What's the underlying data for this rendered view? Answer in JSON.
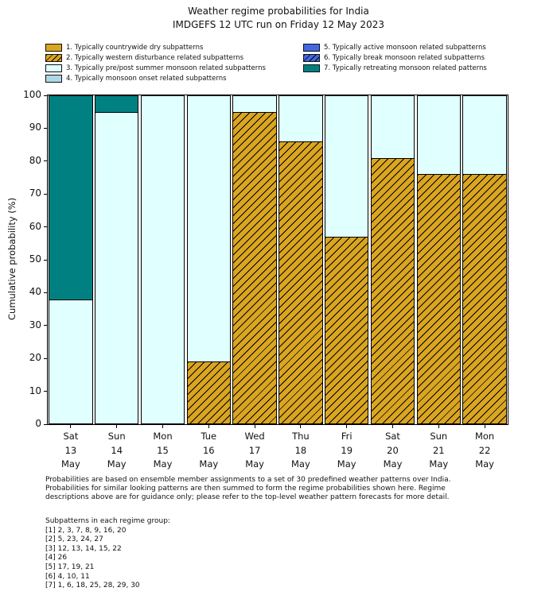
{
  "title": {
    "line1": "Weather regime probabilities for India",
    "line2": "IMDGEFS 12 UTC run on Friday 12 May 2023"
  },
  "legend": {
    "items": [
      {
        "label": "1. Typically countrywide dry subpatterns",
        "color": "#DAA520",
        "hatch": false
      },
      {
        "label": "2. Typically western disturbance related subpatterns",
        "color": "#DAA520",
        "hatch": true
      },
      {
        "label": "3. Typically pre/post summer monsoon related subpatterns",
        "color": "#E0FFFF",
        "hatch": false
      },
      {
        "label": "4. Typically monsoon onset related subpatterns",
        "color": "#ADD8E6",
        "hatch": false
      },
      {
        "label": "5. Typically active monsoon related subpatterns",
        "color": "#4169E1",
        "hatch": false
      },
      {
        "label": "6. Typically break monsoon related subpatterns",
        "color": "#4169E1",
        "hatch": true
      },
      {
        "label": "7. Typically retreating monsoon related patterns",
        "color": "#008080",
        "hatch": false
      }
    ],
    "left_column_count": 4
  },
  "chart_data": {
    "type": "bar",
    "stacked": true,
    "title": "Weather regime probabilities for India — IMDGEFS 12 UTC run on Friday 12 May 2023",
    "xlabel": "",
    "ylabel": "Cumulative probability (%)",
    "ylim": [
      0,
      100
    ],
    "yticks": [
      0,
      10,
      20,
      30,
      40,
      50,
      60,
      70,
      80,
      90,
      100
    ],
    "grid": false,
    "legend_position": "above axes, two columns",
    "categories": [
      "Sat 13 May",
      "Sun 14 May",
      "Mon 15 May",
      "Tue 16 May",
      "Wed 17 May",
      "Thu 18 May",
      "Fri 19 May",
      "Sat 20 May",
      "Sun 21 May",
      "Mon 22 May"
    ],
    "series": [
      {
        "name": "2. Typically western disturbance related subpatterns",
        "regime": 2,
        "color": "#DAA520",
        "hatch": true,
        "values": [
          0,
          0,
          0,
          19,
          95,
          86,
          57,
          81,
          76,
          76
        ]
      },
      {
        "name": "3. Typically pre/post summer monsoon related subpatterns",
        "regime": 3,
        "color": "#E0FFFF",
        "hatch": false,
        "values": [
          38,
          95,
          100,
          81,
          5,
          14,
          43,
          19,
          24,
          24
        ]
      },
      {
        "name": "7. Typically retreating monsoon related patterns",
        "regime": 7,
        "color": "#008080",
        "hatch": false,
        "values": [
          62,
          5,
          0,
          0,
          0,
          0,
          0,
          0,
          0,
          0
        ]
      }
    ]
  },
  "footnote": {
    "lines": [
      "Probabilities are based on ensemble member assignments to a set of 30 predefined weather patterns over India.",
      "Probabilities for similar looking patterns are then summed to form the regime probabilities shown here. Regime",
      "descriptions above are for guidance only; please refer to the top-level weather pattern forecasts for more detail."
    ]
  },
  "subpatterns": {
    "heading": "Subpatterns in each regime group:",
    "lines": [
      "[1] 2, 3, 7, 8, 9, 16, 20",
      "[2] 5, 23, 24, 27",
      "[3] 12, 13, 14, 15, 22",
      "[4] 26",
      "[5] 17, 19, 21",
      "[6] 4, 10, 11",
      "[7] 1, 6, 18, 25, 28, 29, 30"
    ]
  }
}
